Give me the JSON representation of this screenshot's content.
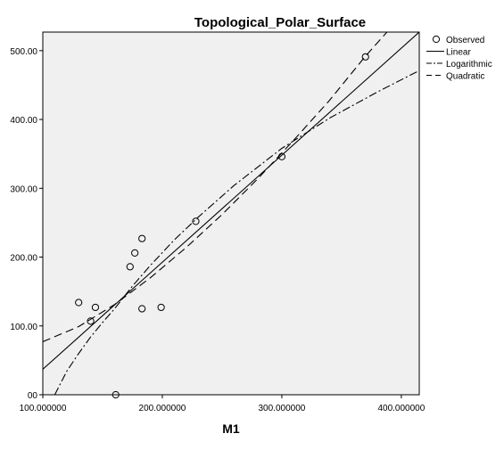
{
  "chart_data": {
    "type": "scatter",
    "title": "Topological_Polar_Surface",
    "xlabel": "M1",
    "ylabel": "",
    "xlim": [
      100,
      415
    ],
    "ylim": [
      0,
      527
    ],
    "x_ticks": [
      100,
      200,
      300,
      400
    ],
    "x_tick_labels": [
      "100.000000",
      "200.000000",
      "300.000000",
      "400.000000"
    ],
    "y_ticks": [
      0,
      100,
      200,
      300,
      400,
      500
    ],
    "y_tick_labels": [
      "00",
      "100.00",
      "200.00",
      "300.00",
      "400.00",
      "500.00"
    ],
    "grid": false,
    "legend_placement": "top-right outside plot",
    "legend": [
      "Observed",
      "Linear",
      "Logarithmic",
      "Quadratic"
    ],
    "series": [
      {
        "name": "Observed",
        "kind": "points",
        "x": [
          130,
          140,
          144,
          161,
          173,
          177,
          183,
          183,
          199,
          228,
          300,
          370
        ],
        "y": [
          134,
          107,
          127,
          0,
          186,
          206,
          227,
          125,
          127,
          252,
          346,
          491
        ]
      },
      {
        "name": "Linear",
        "kind": "line",
        "x": [
          100,
          415
        ],
        "y": [
          37,
          527
        ]
      },
      {
        "name": "Logarithmic",
        "kind": "line",
        "x": [
          110,
          120,
          130,
          140,
          150,
          160,
          175,
          190,
          210,
          230,
          260,
          300,
          340,
          380,
          415
        ],
        "y": [
          0,
          34,
          60,
          84,
          105,
          125,
          158,
          188,
          225,
          258,
          304,
          358,
          402,
          440,
          471
        ]
      },
      {
        "name": "Quadratic",
        "kind": "line",
        "x": [
          100,
          130,
          160,
          190,
          220,
          250,
          280,
          310,
          340,
          370,
          388
        ],
        "y": [
          77,
          99,
          131,
          170,
          214,
          262,
          314,
          370,
          428,
          492,
          527
        ]
      }
    ],
    "colors": {
      "plot_background": "#f0f0f0",
      "marks": "#000000"
    }
  }
}
